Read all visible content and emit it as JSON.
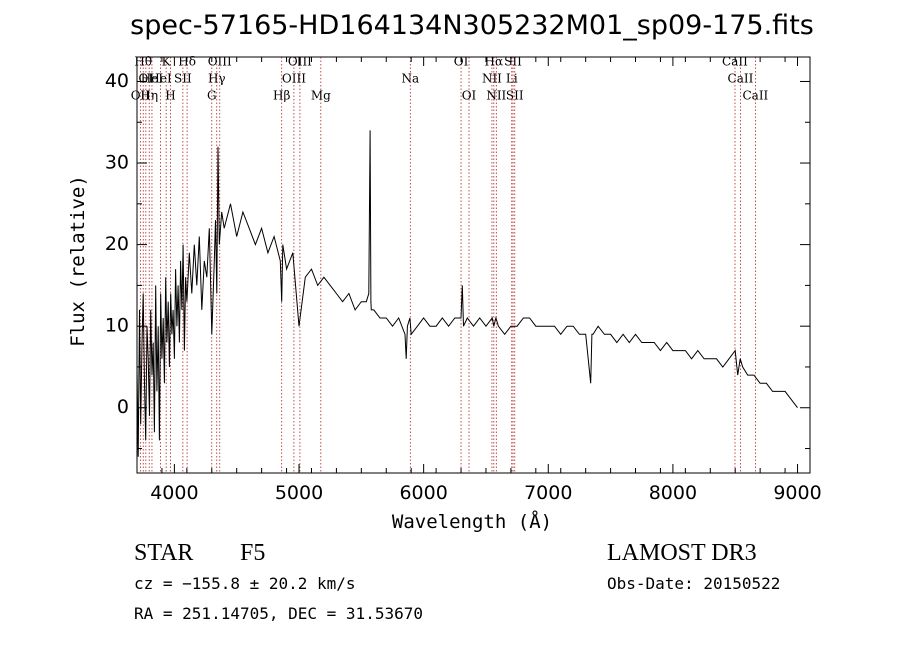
{
  "chart_data": {
    "type": "line",
    "title": "spec-57165-HD164134N305232M01_sp09-175.fits",
    "xlabel": "Wavelength (Å)",
    "ylabel": "Flux (relative)",
    "xlim": [
      3700,
      9100
    ],
    "ylim": [
      -8,
      43
    ],
    "xticks": [
      4000,
      5000,
      6000,
      7000,
      8000,
      9000
    ],
    "yticks": [
      0,
      10,
      20,
      30,
      40
    ],
    "xtick_labels": [
      "4000",
      "5000",
      "6000",
      "7000",
      "8000",
      "9000"
    ],
    "ytick_labels": [
      "0",
      "10",
      "20",
      "30",
      "40"
    ],
    "series": [
      {
        "name": "flux",
        "x": [
          3700,
          3710,
          3720,
          3730,
          3740,
          3750,
          3760,
          3770,
          3780,
          3790,
          3800,
          3810,
          3820,
          3830,
          3840,
          3850,
          3860,
          3870,
          3880,
          3890,
          3900,
          3910,
          3920,
          3930,
          3940,
          3950,
          3960,
          3970,
          3980,
          3990,
          4000,
          4010,
          4020,
          4030,
          4040,
          4050,
          4060,
          4070,
          4080,
          4090,
          4100,
          4120,
          4140,
          4160,
          4180,
          4200,
          4220,
          4240,
          4260,
          4280,
          4300,
          4320,
          4330,
          4340,
          4350,
          4360,
          4380,
          4400,
          4450,
          4500,
          4550,
          4600,
          4650,
          4700,
          4750,
          4800,
          4850,
          4861,
          4870,
          4900,
          4950,
          5000,
          5050,
          5100,
          5150,
          5200,
          5250,
          5300,
          5350,
          5400,
          5450,
          5500,
          5540,
          5560,
          5570,
          5577,
          5580,
          5600,
          5650,
          5700,
          5750,
          5800,
          5850,
          5860,
          5870,
          5890,
          5900,
          5950,
          6000,
          6050,
          6100,
          6150,
          6200,
          6250,
          6300,
          6310,
          6320,
          6350,
          6400,
          6450,
          6500,
          6550,
          6563,
          6580,
          6600,
          6650,
          6700,
          6750,
          6800,
          6850,
          6900,
          6950,
          7000,
          7050,
          7100,
          7150,
          7200,
          7250,
          7300,
          7340,
          7350,
          7360,
          7400,
          7450,
          7500,
          7550,
          7600,
          7650,
          7700,
          7750,
          7800,
          7850,
          7900,
          7950,
          8000,
          8050,
          8100,
          8150,
          8200,
          8250,
          8300,
          8350,
          8400,
          8450,
          8500,
          8520,
          8540,
          8560,
          8600,
          8650,
          8700,
          8750,
          8800,
          8850,
          8900,
          8950,
          9000
        ],
        "y": [
          5,
          -6,
          12,
          -2,
          8,
          14,
          3,
          -4,
          10,
          6,
          -1,
          12,
          4,
          8,
          -3,
          15,
          2,
          10,
          -4,
          14,
          6,
          11,
          3,
          16,
          8,
          13,
          5,
          14,
          9,
          12,
          6,
          17,
          10,
          15,
          8,
          18,
          12,
          20,
          7,
          16,
          13,
          19,
          14,
          20,
          15,
          21,
          12,
          18,
          16,
          22,
          9,
          18,
          23,
          14,
          32,
          20,
          24,
          22,
          25,
          21,
          24,
          22,
          20,
          22,
          19,
          21,
          18,
          13,
          20,
          17,
          19,
          10,
          16,
          17,
          15,
          16,
          15,
          14,
          13,
          14,
          12,
          13,
          13,
          14,
          34,
          13,
          12,
          12,
          11,
          11,
          10,
          11,
          9,
          6,
          10,
          11,
          9,
          10,
          11,
          10,
          10,
          11,
          10,
          11,
          11,
          15,
          10,
          11,
          10,
          11,
          10,
          11,
          10,
          11,
          10,
          9,
          10,
          10,
          11,
          11,
          10,
          10,
          10,
          10,
          9,
          10,
          10,
          9,
          9,
          3,
          9,
          9,
          10,
          9,
          9,
          8,
          9,
          8,
          9,
          8,
          8,
          8,
          7,
          8,
          7,
          7,
          7,
          6,
          7,
          6,
          6,
          6,
          5,
          6,
          7,
          4,
          6,
          5,
          4,
          4,
          3,
          3,
          2,
          2,
          2,
          1,
          0
        ]
      }
    ],
    "spectral_lines": [
      {
        "wavelength": 3727,
        "label": "OII",
        "row": 2
      },
      {
        "wavelength": 3750,
        "label": "Hθ",
        "row": 0
      },
      {
        "wavelength": 3771,
        "label": "OI",
        "row": 1
      },
      {
        "wavelength": 3798,
        "label": "Hη",
        "row": 2
      },
      {
        "wavelength": 3820,
        "label": "HeI",
        "row": 1
      },
      {
        "wavelength": 3889,
        "label": "HeI",
        "row": 1
      },
      {
        "wavelength": 3934,
        "label": "K",
        "row": 0
      },
      {
        "wavelength": 3969,
        "label": "H",
        "row": 2
      },
      {
        "wavelength": 4068,
        "label": "SII",
        "row": 1
      },
      {
        "wavelength": 4102,
        "label": "Hδ",
        "row": 0
      },
      {
        "wavelength": 4300,
        "label": "G",
        "row": 2
      },
      {
        "wavelength": 4340,
        "label": "Hγ",
        "row": 1
      },
      {
        "wavelength": 4364,
        "label": "OIII",
        "row": 0
      },
      {
        "wavelength": 4861,
        "label": "Hβ",
        "row": 2
      },
      {
        "wavelength": 4959,
        "label": "OIII",
        "row": 1
      },
      {
        "wavelength": 5007,
        "label": "OIII",
        "row": 0
      },
      {
        "wavelength": 5175,
        "label": "Mg",
        "row": 2
      },
      {
        "wavelength": 5893,
        "label": "Na",
        "row": 1
      },
      {
        "wavelength": 6300,
        "label": "OI",
        "row": 0
      },
      {
        "wavelength": 6364,
        "label": "OI",
        "row": 2
      },
      {
        "wavelength": 6548,
        "label": "NII",
        "row": 1
      },
      {
        "wavelength": 6563,
        "label": "Hα",
        "row": 0
      },
      {
        "wavelength": 6583,
        "label": "NII",
        "row": 2
      },
      {
        "wavelength": 6707,
        "label": "Li",
        "row": 1
      },
      {
        "wavelength": 6717,
        "label": "SII",
        "row": 0
      },
      {
        "wavelength": 6731,
        "label": "SII",
        "row": 2
      },
      {
        "wavelength": 8498,
        "label": "CaII",
        "row": 0
      },
      {
        "wavelength": 8542,
        "label": "CaII",
        "row": 1
      },
      {
        "wavelength": 8662,
        "label": "CaII",
        "row": 2
      }
    ],
    "grid": false,
    "colors": {
      "spectrum": "#000000",
      "lines": "#b22222",
      "axes": "#000000"
    }
  },
  "info": {
    "class": "STAR",
    "subclass": "F5",
    "survey": "LAMOST DR3",
    "cz": "cz = −155.8 ± 20.2 km/s",
    "obs_date": "Obs-Date: 20150522",
    "radec": "RA = 251.14705, DEC =  31.53670"
  }
}
